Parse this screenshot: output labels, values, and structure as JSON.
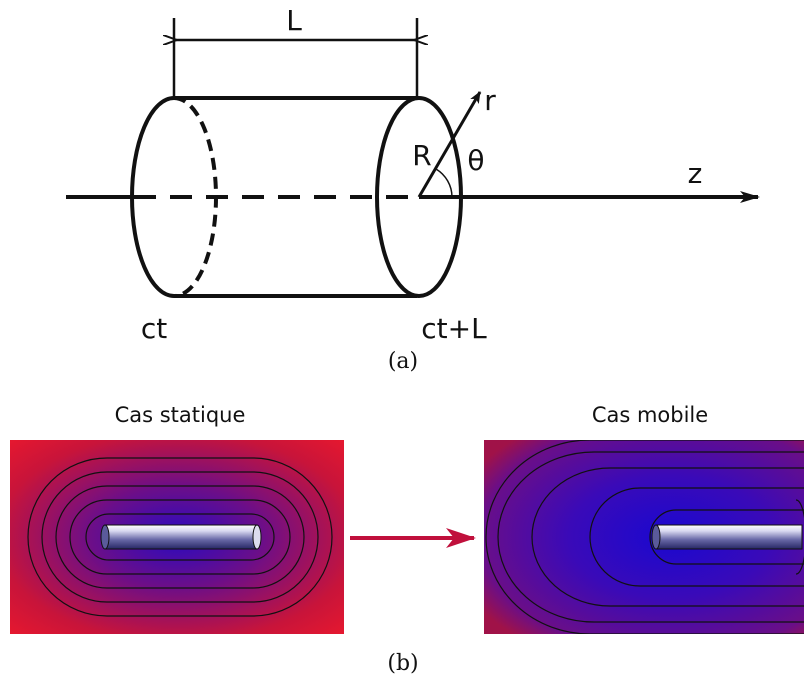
{
  "part_a": {
    "length_label": "L",
    "radius_label": "R",
    "radial_axis_label": "r",
    "angle_label": "θ",
    "axis_label": "z",
    "left_end_label": "ct",
    "right_end_label": "ct+L",
    "caption": "(a)"
  },
  "part_b": {
    "left_panel": {
      "title": "Cas statique"
    },
    "right_panel": {
      "title": "Cas mobile"
    },
    "caption": "(b)"
  },
  "colors": {
    "field_high": "#e8182e",
    "field_low": "#1a08c8",
    "arrow": "#c0103c",
    "rod_light": "#ffffff",
    "rod_dark": "#2a2a70",
    "line": "#111111"
  }
}
